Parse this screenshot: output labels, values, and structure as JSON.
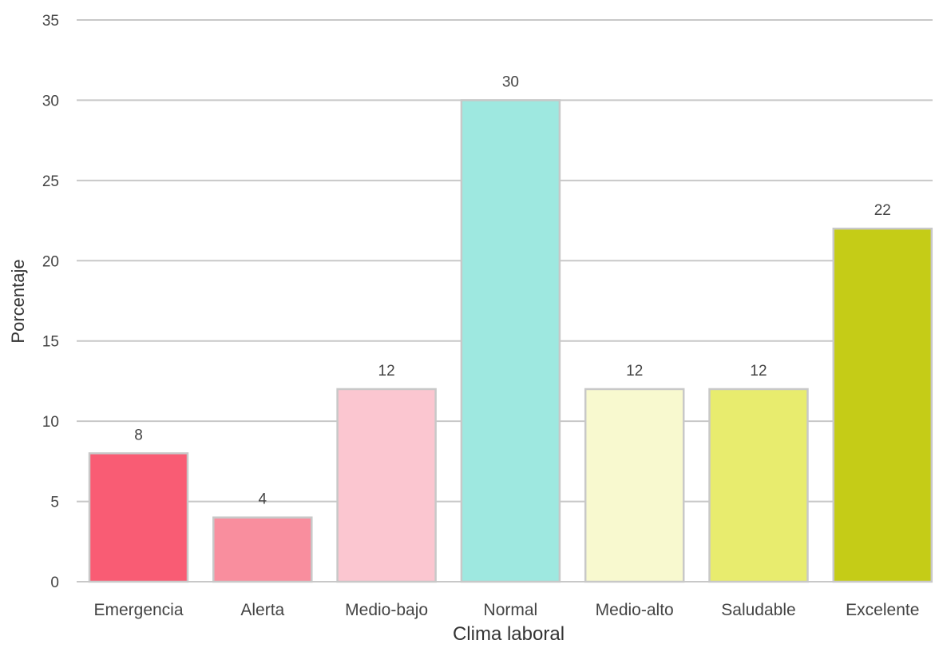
{
  "chart_data": {
    "type": "bar",
    "categories": [
      "Emergencia",
      "Alerta",
      "Medio-bajo",
      "Normal",
      "Medio-alto",
      "Saludable",
      "Excelente"
    ],
    "values": [
      8,
      4,
      12,
      30,
      12,
      12,
      22
    ],
    "data_labels": [
      "8",
      "4",
      "12",
      "30",
      "12",
      "12",
      "22"
    ],
    "colors": [
      "#f95c74",
      "#f98e9e",
      "#fbc6d0",
      "#9ee8e0",
      "#f8f9cf",
      "#e8ec6e",
      "#c5cc17"
    ],
    "bar_outline_color": "#c8c8c8",
    "grid_color": "#c8c8c8",
    "title": "",
    "xlabel": "Clima laboral",
    "ylabel": "Porcentaje",
    "ylim": [
      0,
      35
    ],
    "yticks": [
      0,
      5,
      10,
      15,
      20,
      25,
      30,
      35
    ],
    "grid": true,
    "legend": "none"
  }
}
